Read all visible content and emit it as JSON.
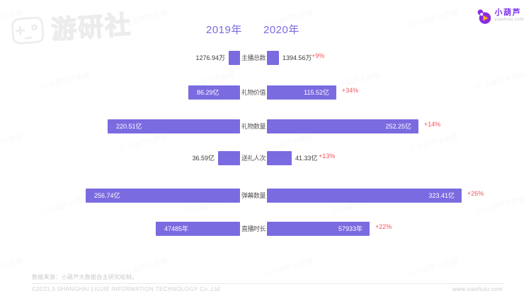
{
  "header": {
    "year_2019": "2019年",
    "year_2020": "2020年"
  },
  "brand": {
    "name": "小葫芦",
    "domain": "xiaohulu.com"
  },
  "watermarks": {
    "corner_logo_text": "游研社",
    "pattern_text": "ⓑ 小葫芦大数据"
  },
  "chart_data": {
    "type": "bar",
    "subtype": "tornado-comparison",
    "title": "",
    "legend_left": "2019年",
    "legend_right": "2020年",
    "categories": [
      "主播总数",
      "礼物价值",
      "礼物数量",
      "送礼人次",
      "弹幕数量",
      "直播时长"
    ],
    "units": [
      "万",
      "亿",
      "亿",
      "亿",
      "亿",
      "年"
    ],
    "series": [
      {
        "name": "2019年",
        "values": [
          1276.94,
          86.29,
          220.51,
          36.59,
          256.74,
          47485
        ],
        "labels": [
          "1276.94万",
          "86.29亿",
          "220.51亿",
          "36.59亿",
          "256.74亿",
          "47485年"
        ]
      },
      {
        "name": "2020年",
        "values": [
          1394.56,
          115.52,
          252.25,
          41.33,
          323.41,
          57933
        ],
        "labels": [
          "1394.56万",
          "115.52亿",
          "252.25亿",
          "41.33亿",
          "323.41亿",
          "57933年"
        ]
      }
    ],
    "change_percent": [
      "+9%",
      "+34%",
      "+14%",
      "+13%",
      "+26%",
      "+22%"
    ],
    "colors": {
      "bar": "#7a6be0",
      "header": "#7a6be0",
      "change": "#f2545b",
      "category_label": "#555555",
      "value_outside": "#3a3a3a",
      "value_inside": "#ffffff"
    },
    "layout_hint": "bars grow outward from center category labels; 2019 to the left, 2020 to the right; values inside long bars, outside short bars"
  },
  "footer": {
    "source_note": "数据来源：小葫芦大数据自主研究绘制。",
    "copyright": "©2021.3 SHANGHAI LIUJIE INFORMATION  TECHNOLOGY Co.,Ltd",
    "website": "www.xiaohulu.com"
  }
}
